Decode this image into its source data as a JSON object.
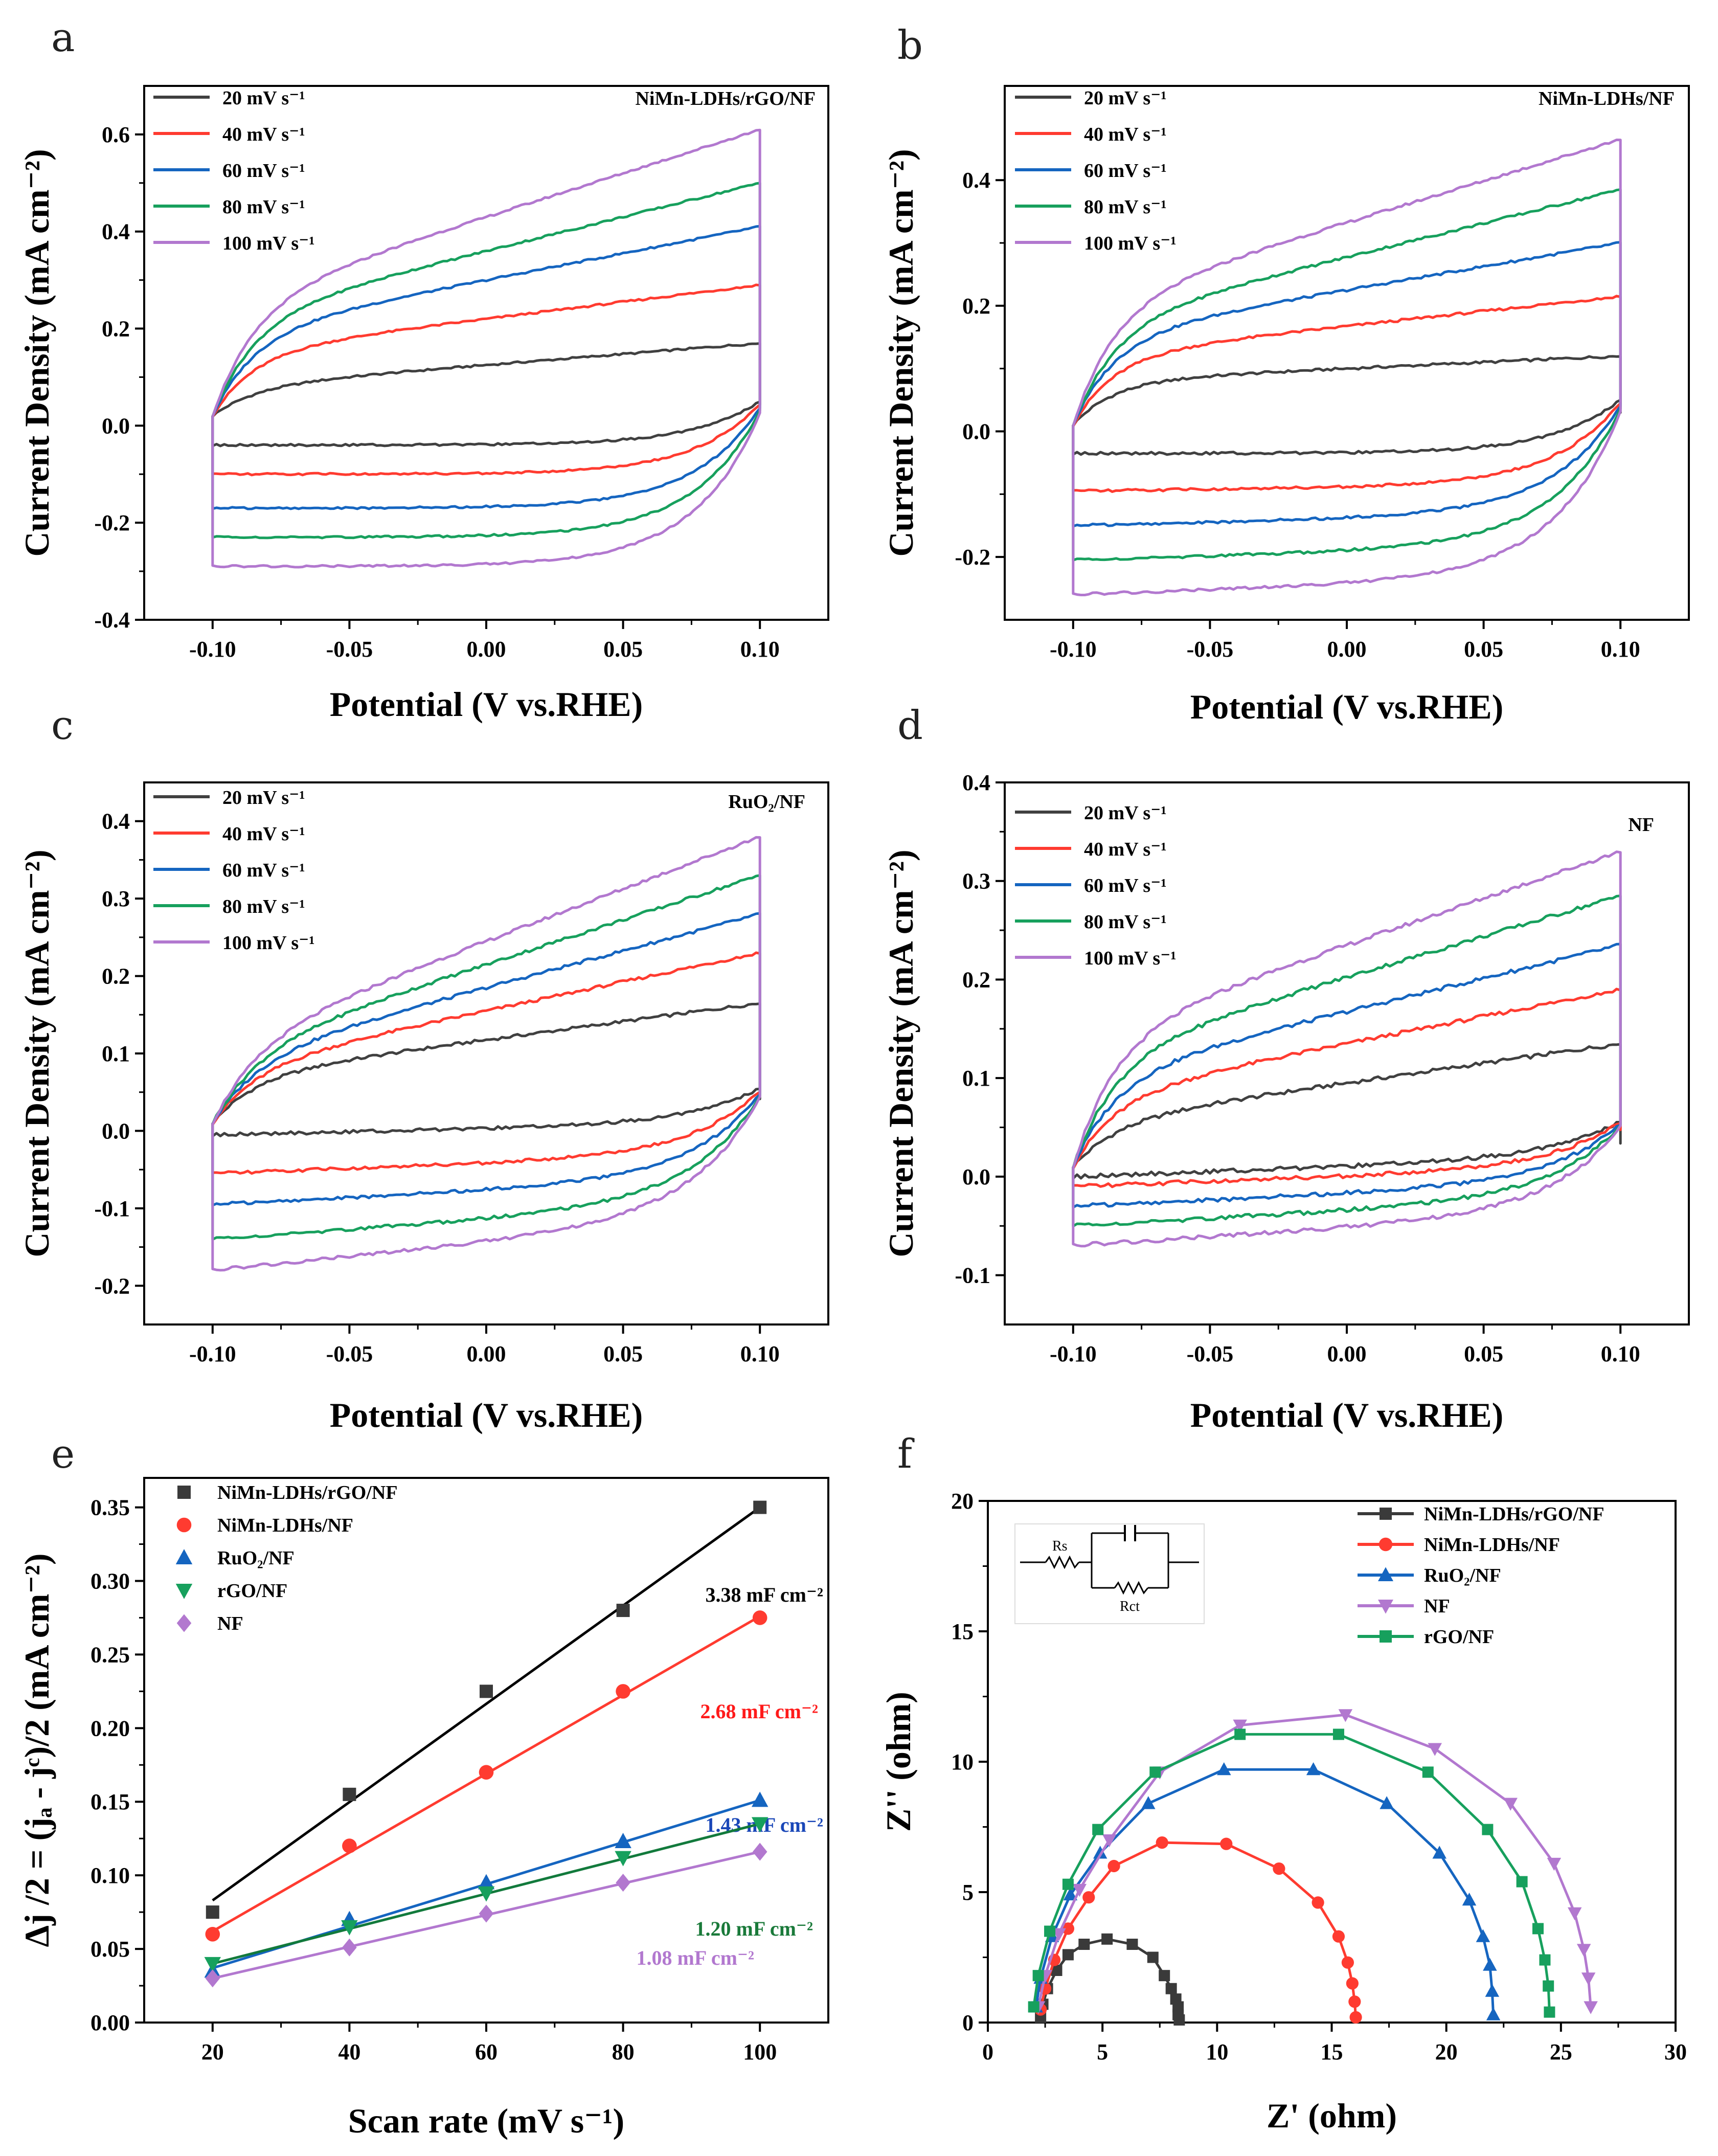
{
  "chart_data": [
    {
      "id": "a",
      "panel_label": "a",
      "type": "line",
      "subtype": "cv",
      "sample": "NiMn-LDHs/rGO/NF",
      "xlabel": "Potential (V vs.RHE)",
      "ylabel": "Current Density (mA cm⁻²)",
      "xlim": [
        -0.125,
        0.125
      ],
      "ylim": [
        -0.4,
        0.7
      ],
      "xticks": [
        -0.1,
        -0.05,
        0.0,
        0.05,
        0.1
      ],
      "xtick_labels": [
        "-0.10",
        "-0.05",
        "0.00",
        "0.05",
        "0.10"
      ],
      "yticks": [
        -0.4,
        -0.2,
        0.0,
        0.2,
        0.4,
        0.6
      ],
      "ytick_labels": [
        "-0.4",
        "-0.2",
        "0.0",
        "0.2",
        "0.4",
        "0.6"
      ],
      "series": [
        {
          "name": "20 mV s⁻¹",
          "color": "#404040",
          "anodic_start": 0.02,
          "anodic_knee": 0.08,
          "anodic_end": 0.17,
          "cathodic_flat": -0.04,
          "cathodic_end": -0.04
        },
        {
          "name": "40 mV s⁻¹",
          "color": "#ff3b30",
          "anodic_start": 0.02,
          "anodic_knee": 0.15,
          "anodic_end": 0.29,
          "cathodic_flat": -0.1,
          "cathodic_end": -0.1
        },
        {
          "name": "60 mV s⁻¹",
          "color": "#1565c0",
          "anodic_start": 0.02,
          "anodic_knee": 0.19,
          "anodic_end": 0.41,
          "cathodic_flat": -0.17,
          "cathodic_end": -0.17
        },
        {
          "name": "80 mV s⁻¹",
          "color": "#17a05d",
          "anodic_start": 0.02,
          "anodic_knee": 0.22,
          "anodic_end": 0.5,
          "cathodic_flat": -0.23,
          "cathodic_end": -0.23
        },
        {
          "name": "100 mV s⁻¹",
          "color": "#b278cf",
          "anodic_start": 0.02,
          "anodic_knee": 0.25,
          "anodic_end": 0.61,
          "cathodic_flat": -0.29,
          "cathodic_end": -0.29
        }
      ]
    },
    {
      "id": "b",
      "panel_label": "b",
      "type": "line",
      "subtype": "cv",
      "sample": "NiMn-LDHs/NF",
      "xlabel": "Potential (V vs.RHE)",
      "ylabel": "Current Density (mA cm⁻²)",
      "xlim": [
        -0.125,
        0.125
      ],
      "ylim": [
        -0.3,
        0.55
      ],
      "xticks": [
        -0.1,
        -0.05,
        0.0,
        0.05,
        0.1
      ],
      "xtick_labels": [
        "-0.10",
        "-0.05",
        "0.00",
        "0.05",
        "0.10"
      ],
      "yticks": [
        -0.2,
        0.0,
        0.2,
        0.4
      ],
      "ytick_labels": [
        "-0.2",
        "0.0",
        "0.2",
        "0.4"
      ],
      "series": [
        {
          "name": "20 mV s⁻¹",
          "color": "#404040",
          "anodic_start": 0.01,
          "anodic_knee": 0.08,
          "anodic_end": 0.12,
          "cathodic_flat": -0.035,
          "cathodic_end": -0.035
        },
        {
          "name": "40 mV s⁻¹",
          "color": "#ff3b30",
          "anodic_start": 0.01,
          "anodic_knee": 0.12,
          "anodic_end": 0.215,
          "cathodic_flat": -0.085,
          "cathodic_end": -0.095
        },
        {
          "name": "60 mV s⁻¹",
          "color": "#1565c0",
          "anodic_start": 0.01,
          "anodic_knee": 0.15,
          "anodic_end": 0.3,
          "cathodic_flat": -0.13,
          "cathodic_end": -0.15
        },
        {
          "name": "80 mV s⁻¹",
          "color": "#17a05d",
          "anodic_start": 0.01,
          "anodic_knee": 0.17,
          "anodic_end": 0.385,
          "cathodic_flat": -0.18,
          "cathodic_end": -0.205
        },
        {
          "name": "100 mV s⁻¹",
          "color": "#b278cf",
          "anodic_start": 0.01,
          "anodic_knee": 0.2,
          "anodic_end": 0.465,
          "cathodic_flat": -0.23,
          "cathodic_end": -0.26
        }
      ]
    },
    {
      "id": "c",
      "panel_label": "c",
      "type": "line",
      "subtype": "cv",
      "sample": "RuO₂/NF",
      "xlabel": "Potential (V vs.RHE)",
      "ylabel": "Current Density (mA cm⁻²)",
      "xlim": [
        -0.125,
        0.125
      ],
      "ylim": [
        -0.25,
        0.45
      ],
      "xticks": [
        -0.1,
        -0.05,
        0.0,
        0.05,
        0.1
      ],
      "xtick_labels": [
        "-0.10",
        "-0.05",
        "0.00",
        "0.05",
        "0.10"
      ],
      "yticks": [
        -0.2,
        -0.1,
        0.0,
        0.1,
        0.2,
        0.3,
        0.4
      ],
      "ytick_labels": [
        "-0.2",
        "-0.1",
        "0.0",
        "0.1",
        "0.2",
        "0.3",
        "0.4"
      ],
      "series": [
        {
          "name": "20 mV s⁻¹",
          "color": "#404040",
          "anodic_start": 0.01,
          "anodic_knee": 0.07,
          "anodic_end": 0.165,
          "cathodic_flat": 0.01,
          "cathodic_end": -0.005
        },
        {
          "name": "40 mV s⁻¹",
          "color": "#ff3b30",
          "anodic_start": 0.01,
          "anodic_knee": 0.08,
          "anodic_end": 0.23,
          "cathodic_flat": -0.03,
          "cathodic_end": -0.055
        },
        {
          "name": "60 mV s⁻¹",
          "color": "#1565c0",
          "anodic_start": 0.01,
          "anodic_knee": 0.09,
          "anodic_end": 0.28,
          "cathodic_flat": -0.06,
          "cathodic_end": -0.095
        },
        {
          "name": "80 mV s⁻¹",
          "color": "#17a05d",
          "anodic_start": 0.01,
          "anodic_knee": 0.1,
          "anodic_end": 0.33,
          "cathodic_flat": -0.09,
          "cathodic_end": -0.14
        },
        {
          "name": "100 mV s⁻¹",
          "color": "#b278cf",
          "anodic_start": 0.01,
          "anodic_knee": 0.11,
          "anodic_end": 0.38,
          "cathodic_flat": -0.11,
          "cathodic_end": -0.18
        }
      ]
    },
    {
      "id": "d",
      "panel_label": "d",
      "type": "line",
      "subtype": "cv",
      "sample": "NF",
      "xlabel": "Potential (V vs.RHE)",
      "ylabel": "Current Density (mA cm⁻²)",
      "xlim": [
        -0.125,
        0.125
      ],
      "ylim": [
        -0.15,
        0.4
      ],
      "xticks": [
        -0.1,
        -0.05,
        0.0,
        0.05,
        0.1
      ],
      "xtick_labels": [
        "-0.10",
        "-0.05",
        "0.00",
        "0.05",
        "0.10"
      ],
      "yticks": [
        -0.1,
        0.0,
        0.1,
        0.2,
        0.3,
        0.4
      ],
      "ytick_labels": [
        "-0.1",
        "0.0",
        "0.1",
        "0.2",
        "0.3",
        "0.4"
      ],
      "series": [
        {
          "name": "20 mV s⁻¹",
          "color": "#404040",
          "anodic_start": 0.01,
          "anodic_knee": 0.055,
          "anodic_end": 0.135,
          "cathodic_flat": 0.02,
          "cathodic_end": 0.0
        },
        {
          "name": "40 mV s⁻¹",
          "color": "#ff3b30",
          "anodic_start": 0.01,
          "anodic_knee": 0.08,
          "anodic_end": 0.19,
          "cathodic_flat": 0.01,
          "cathodic_end": -0.01
        },
        {
          "name": "60 mV s⁻¹",
          "color": "#1565c0",
          "anodic_start": 0.01,
          "anodic_knee": 0.1,
          "anodic_end": 0.235,
          "cathodic_flat": -0.005,
          "cathodic_end": -0.03
        },
        {
          "name": "80 mV s⁻¹",
          "color": "#17a05d",
          "anodic_start": 0.01,
          "anodic_knee": 0.12,
          "anodic_end": 0.285,
          "cathodic_flat": -0.02,
          "cathodic_end": -0.05
        },
        {
          "name": "100 mV s⁻¹",
          "color": "#b278cf",
          "anodic_start": 0.01,
          "anodic_knee": 0.14,
          "anodic_end": 0.33,
          "cathodic_flat": -0.035,
          "cathodic_end": -0.07
        }
      ]
    },
    {
      "id": "e",
      "panel_label": "e",
      "type": "scatter",
      "subtype": "linear-fit",
      "xlabel": "Scan rate (mV s⁻¹)",
      "ylabel": "Δj /2 = (jₐ - jᶜ)/2 (mA cm⁻²)",
      "xlim": [
        10,
        110
      ],
      "ylim": [
        0,
        0.37
      ],
      "xticks": [
        20,
        40,
        60,
        80,
        100
      ],
      "xtick_labels": [
        "20",
        "40",
        "60",
        "80",
        "100"
      ],
      "yticks": [
        0.0,
        0.05,
        0.1,
        0.15,
        0.2,
        0.25,
        0.3,
        0.35
      ],
      "ytick_labels": [
        "0.00",
        "0.05",
        "0.10",
        "0.15",
        "0.20",
        "0.25",
        "0.30",
        "0.35"
      ],
      "x": [
        20,
        40,
        60,
        80,
        100
      ],
      "series": [
        {
          "name": "NiMn-LDHs/rGO/NF",
          "color": "#3a3a3a",
          "line_color": "#000000",
          "marker": "square",
          "values": [
            0.075,
            0.155,
            0.225,
            0.28,
            0.35
          ],
          "fit": [
            0.083,
            0.35
          ],
          "slope_label": "3.38 mF cm⁻²",
          "label_color": "#000000"
        },
        {
          "name": "NiMn-LDHs/NF",
          "color": "#ff3b30",
          "line_color": "#ff3b30",
          "marker": "circle",
          "values": [
            0.06,
            0.12,
            0.17,
            0.225,
            0.275
          ],
          "fit": [
            0.062,
            0.276
          ],
          "slope_label": "2.68 mF cm⁻²",
          "label_color": "#ff1a1a"
        },
        {
          "name": "RuO₂/NF",
          "color": "#1565c0",
          "line_color": "#1565c0",
          "marker": "triangle-up",
          "values": [
            0.035,
            0.07,
            0.095,
            0.123,
            0.151
          ],
          "fit": [
            0.037,
            0.151
          ],
          "slope_label": "1.43 mF cm⁻²",
          "label_color": "#1a47b8"
        },
        {
          "name": "rGO/NF",
          "color": "#17a05d",
          "line_color": "#127a3c",
          "marker": "triangle-down",
          "values": [
            0.04,
            0.065,
            0.088,
            0.112,
            0.135
          ],
          "fit": [
            0.04,
            0.135
          ],
          "slope_label": "1.20 mF cm⁻²",
          "label_color": "#1a7a3a"
        },
        {
          "name": "NF",
          "color": "#b278cf",
          "line_color": "#b278cf",
          "marker": "diamond",
          "values": [
            0.03,
            0.051,
            0.074,
            0.095,
            0.116
          ],
          "fit": [
            0.03,
            0.116
          ],
          "slope_label": "1.08 mF cm⁻²",
          "label_color": "#b278cf"
        }
      ]
    },
    {
      "id": "f",
      "panel_label": "f",
      "type": "line",
      "subtype": "nyquist",
      "xlabel": "Z' (ohm)",
      "ylabel": "Z'' (ohm)",
      "xlim": [
        0,
        30
      ],
      "ylim": [
        0,
        20
      ],
      "xticks": [
        0,
        5,
        10,
        15,
        20,
        25,
        30
      ],
      "xtick_labels": [
        "0",
        "5",
        "10",
        "15",
        "20",
        "25",
        "30"
      ],
      "yticks": [
        0,
        5,
        10,
        15,
        20
      ],
      "ytick_labels": [
        "0",
        "5",
        "10",
        "15",
        "20"
      ],
      "circuit_labels": [
        "Rs",
        "Rct"
      ],
      "series": [
        {
          "name": "NiMn-LDHs/rGO/NF",
          "color": "#3a3a3a",
          "marker": "square",
          "x": [
            2.3,
            2.4,
            2.6,
            3.0,
            3.5,
            4.2,
            5.2,
            6.3,
            7.2,
            7.7,
            8.0,
            8.2,
            8.3,
            8.3,
            8.35
          ],
          "y": [
            0.2,
            0.7,
            1.3,
            2.0,
            2.6,
            3.0,
            3.2,
            3.0,
            2.5,
            1.8,
            1.3,
            0.9,
            0.6,
            0.3,
            0.1
          ]
        },
        {
          "name": "NiMn-LDHs/NF",
          "color": "#ff3b30",
          "marker": "circle",
          "x": [
            2.3,
            2.5,
            2.9,
            3.5,
            4.4,
            5.5,
            7.6,
            10.4,
            12.7,
            14.4,
            15.3,
            15.7,
            15.9,
            16.0,
            16.05
          ],
          "y": [
            0.5,
            1.3,
            2.4,
            3.6,
            4.8,
            6.0,
            6.9,
            6.85,
            5.9,
            4.6,
            3.3,
            2.3,
            1.5,
            0.8,
            0.2
          ]
        },
        {
          "name": "RuO₂/NF",
          "color": "#1565c0",
          "marker": "triangle-up",
          "x": [
            2.1,
            2.3,
            2.8,
            3.6,
            4.9,
            7.0,
            10.3,
            14.2,
            17.4,
            19.7,
            21.0,
            21.6,
            21.9,
            22.0,
            22.05
          ],
          "y": [
            0.6,
            1.7,
            3.3,
            4.9,
            6.5,
            8.4,
            9.7,
            9.7,
            8.4,
            6.5,
            4.7,
            3.3,
            2.2,
            1.2,
            0.3
          ]
        },
        {
          "name": "NF",
          "color": "#b278cf",
          "marker": "triangle-down",
          "x": [
            2.2,
            2.5,
            3.1,
            4.0,
            5.3,
            7.5,
            11.0,
            15.6,
            19.5,
            22.8,
            24.7,
            25.6,
            26.0,
            26.2,
            26.3
          ],
          "y": [
            0.6,
            1.8,
            3.4,
            5.1,
            7.0,
            9.6,
            11.4,
            11.8,
            10.5,
            8.4,
            6.1,
            4.2,
            2.8,
            1.7,
            0.6
          ]
        },
        {
          "name": "rGO/NF",
          "color": "#17a05d",
          "marker": "square",
          "x": [
            2.0,
            2.2,
            2.7,
            3.5,
            4.8,
            7.3,
            11.0,
            15.3,
            19.2,
            21.8,
            23.3,
            24.0,
            24.3,
            24.45,
            24.5
          ],
          "y": [
            0.6,
            1.8,
            3.5,
            5.3,
            7.4,
            9.6,
            11.05,
            11.05,
            9.6,
            7.4,
            5.4,
            3.6,
            2.4,
            1.4,
            0.4
          ]
        }
      ]
    }
  ]
}
